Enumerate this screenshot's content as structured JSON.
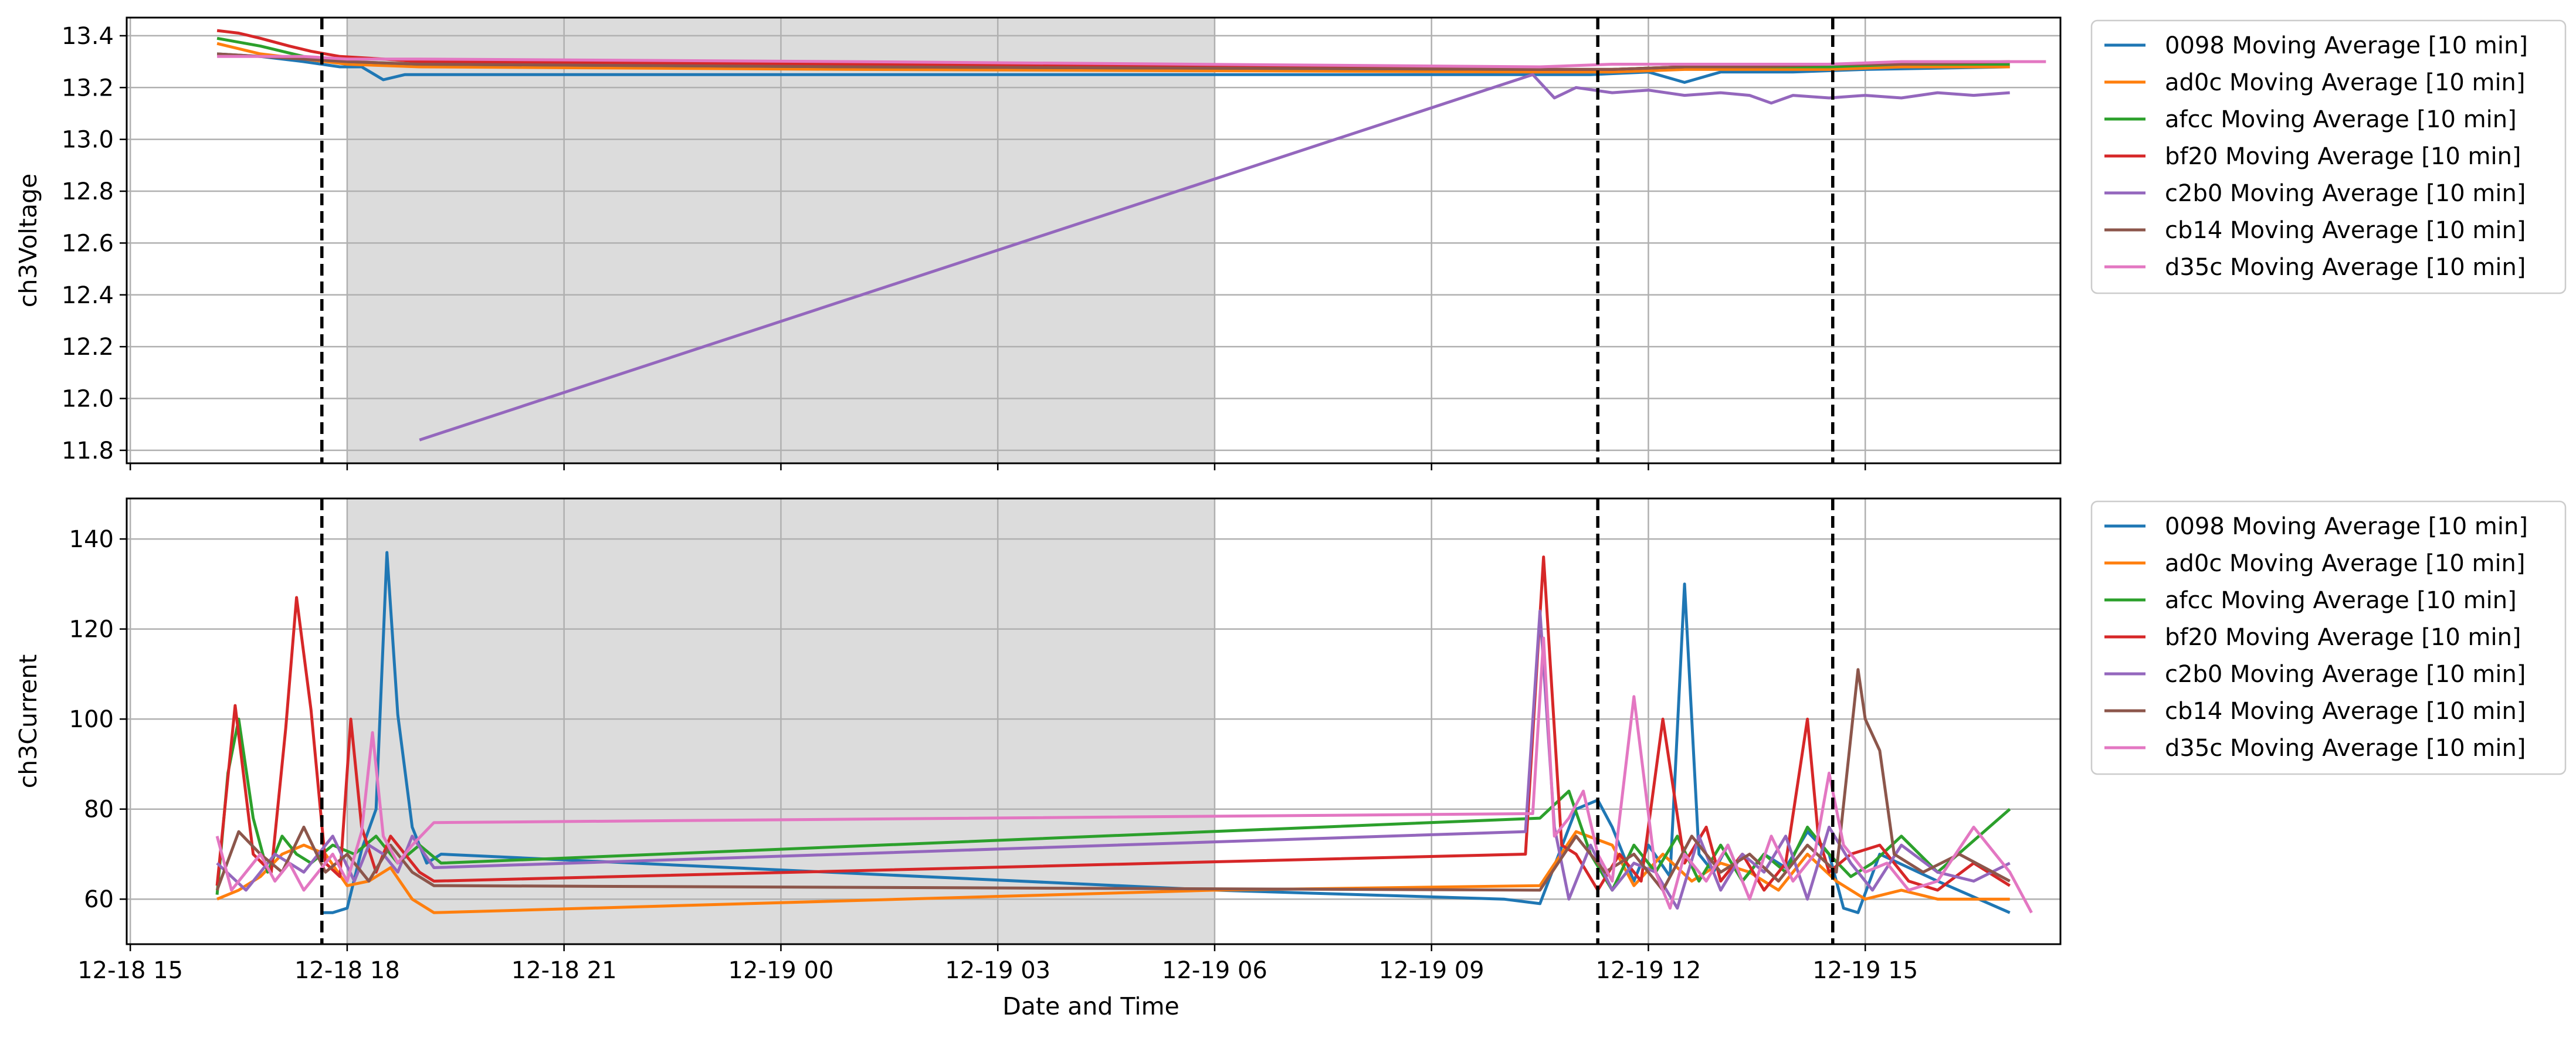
{
  "figure": {
    "x_axis_label": "Date and Time",
    "x_tick_labels": [
      "12-18 15",
      "12-18 18",
      "12-18 21",
      "12-19 00",
      "12-19 03",
      "12-19 06",
      "12-19 09",
      "12-19 12",
      "12-19 15"
    ]
  },
  "colors": {
    "0098": "#1f77b4",
    "ad0c": "#ff7f0e",
    "afcc": "#2ca02c",
    "bf20": "#d62728",
    "c2b0": "#9467bd",
    "cb14": "#8c564b",
    "d35c": "#e377c2",
    "shade": "#dcdcdc",
    "grid": "#b0b0b0",
    "vline": "#000000"
  },
  "chart_data": [
    {
      "type": "line",
      "x_unit": "hours since 12-18 00:00",
      "ylabel": "ch3Voltage",
      "xlim": [
        14.95,
        41.7
      ],
      "ylim": [
        11.75,
        13.47
      ],
      "yticks": [
        11.8,
        12.0,
        12.2,
        12.4,
        12.6,
        12.8,
        13.0,
        13.2,
        13.4
      ],
      "ytick_labels": [
        "11.8",
        "12.0",
        "12.2",
        "12.4",
        "12.6",
        "12.8",
        "13.0",
        "13.2",
        "13.4"
      ],
      "xticks": [
        15,
        18,
        21,
        24,
        27,
        30,
        33,
        36,
        39
      ],
      "shaded_region": [
        18.0,
        30.0
      ],
      "vlines": [
        17.65,
        35.3,
        38.55
      ],
      "legend_loc": "outside-right",
      "series": [
        {
          "name": "0098 Moving Average [10 min]",
          "color_key": "0098",
          "x": [
            16.2,
            16.8,
            17.4,
            17.9,
            18.2,
            18.5,
            18.8,
            19.2,
            25.0,
            34.5,
            35.2,
            36.0,
            36.5,
            37.0,
            38.0,
            39.0,
            41.0
          ],
          "y": [
            13.33,
            13.32,
            13.3,
            13.28,
            13.28,
            13.23,
            13.25,
            13.25,
            13.25,
            13.25,
            13.25,
            13.26,
            13.22,
            13.26,
            13.26,
            13.27,
            13.28
          ]
        },
        {
          "name": "ad0c Moving Average [10 min]",
          "color_key": "ad0c",
          "x": [
            16.2,
            16.8,
            17.4,
            18.0,
            19.0,
            25.0,
            34.5,
            35.5,
            36.5,
            37.5,
            38.5,
            39.5,
            41.0
          ],
          "y": [
            13.37,
            13.33,
            13.31,
            13.29,
            13.28,
            13.27,
            13.26,
            13.26,
            13.27,
            13.27,
            13.27,
            13.28,
            13.28
          ]
        },
        {
          "name": "afcc Moving Average [10 min]",
          "color_key": "afcc",
          "x": [
            16.2,
            16.8,
            17.4,
            18.0,
            19.0,
            25.0,
            34.5,
            35.5,
            36.5,
            37.5,
            38.5,
            39.5,
            41.0
          ],
          "y": [
            13.39,
            13.36,
            13.32,
            13.3,
            13.29,
            13.28,
            13.27,
            13.27,
            13.28,
            13.28,
            13.28,
            13.29,
            13.29
          ]
        },
        {
          "name": "bf20 Moving Average [10 min]",
          "color_key": "bf20",
          "x": [
            16.2,
            16.5,
            16.8,
            17.2,
            17.5,
            17.9,
            18.5,
            19.0,
            25.0,
            34.5,
            35.5,
            36.5,
            37.5,
            38.5,
            39.5,
            41.0
          ],
          "y": [
            13.42,
            13.41,
            13.39,
            13.36,
            13.34,
            13.32,
            13.31,
            13.3,
            13.29,
            13.27,
            13.27,
            13.28,
            13.28,
            13.29,
            13.29,
            13.3
          ]
        },
        {
          "name": "c2b0 Moving Average [10 min]",
          "color_key": "c2b0",
          "x": [
            19.0,
            34.4,
            34.7,
            35.0,
            35.5,
            36.0,
            36.5,
            37.0,
            37.4,
            37.7,
            38.0,
            38.5,
            39.0,
            39.5,
            40.0,
            40.5,
            41.0
          ],
          "y": [
            11.84,
            13.25,
            13.16,
            13.2,
            13.18,
            13.19,
            13.17,
            13.18,
            13.17,
            13.14,
            13.17,
            13.16,
            13.17,
            13.16,
            13.18,
            13.17,
            13.18
          ]
        },
        {
          "name": "cb14 Moving Average [10 min]",
          "color_key": "cb14",
          "x": [
            16.2,
            16.8,
            17.4,
            18.0,
            19.0,
            25.0,
            34.5,
            35.5,
            36.5,
            37.5,
            38.5,
            39.5,
            41.0
          ],
          "y": [
            13.33,
            13.32,
            13.31,
            13.3,
            13.29,
            13.28,
            13.27,
            13.27,
            13.28,
            13.28,
            13.29,
            13.29,
            13.3
          ]
        },
        {
          "name": "d35c Moving Average [10 min]",
          "color_key": "d35c",
          "x": [
            16.2,
            16.8,
            17.4,
            18.0,
            19.0,
            25.0,
            34.5,
            35.5,
            36.5,
            37.5,
            38.5,
            39.5,
            41.5
          ],
          "y": [
            13.32,
            13.32,
            13.32,
            13.31,
            13.31,
            13.3,
            13.28,
            13.29,
            13.29,
            13.29,
            13.29,
            13.3,
            13.3
          ]
        }
      ]
    },
    {
      "type": "line",
      "x_unit": "hours since 12-18 00:00",
      "ylabel": "ch3Current",
      "xlim": [
        14.95,
        41.7
      ],
      "ylim": [
        50,
        149
      ],
      "yticks": [
        60,
        80,
        100,
        120,
        140
      ],
      "ytick_labels": [
        "60",
        "80",
        "100",
        "120",
        "140"
      ],
      "xticks": [
        15,
        18,
        21,
        24,
        27,
        30,
        33,
        36,
        39
      ],
      "shaded_region": [
        18.0,
        30.0
      ],
      "vlines": [
        17.65,
        35.3,
        38.55
      ],
      "legend_loc": "outside-right",
      "series": [
        {
          "name": "0098 Moving Average [10 min]",
          "color_key": "0098",
          "x": [
            17.65,
            17.8,
            18.0,
            18.2,
            18.4,
            18.55,
            18.7,
            18.9,
            19.1,
            19.3,
            30.0,
            34.0,
            34.5,
            35.0,
            35.3,
            35.5,
            35.8,
            36.0,
            36.3,
            36.5,
            36.7,
            36.9,
            37.1,
            37.3,
            37.6,
            37.9,
            38.2,
            38.5,
            38.7,
            38.9,
            39.2,
            40.0,
            41.0
          ],
          "y": [
            57,
            57,
            58,
            71,
            80,
            137,
            101,
            76,
            68,
            70,
            62,
            60,
            59,
            80,
            82,
            76,
            64,
            72,
            65,
            130,
            70,
            66,
            72,
            64,
            70,
            67,
            75,
            70,
            58,
            57,
            70,
            64,
            57
          ]
        },
        {
          "name": "ad0c Moving Average [10 min]",
          "color_key": "ad0c",
          "x": [
            16.2,
            16.5,
            16.8,
            17.1,
            17.4,
            17.7,
            18.0,
            18.3,
            18.6,
            18.9,
            19.2,
            30.0,
            34.5,
            35.0,
            35.5,
            35.8,
            36.2,
            36.6,
            37.0,
            37.4,
            37.8,
            38.2,
            38.6,
            39.0,
            39.5,
            40.0,
            41.0
          ],
          "y": [
            60,
            62,
            65,
            70,
            72,
            70,
            63,
            64,
            67,
            60,
            57,
            62,
            63,
            75,
            72,
            63,
            70,
            64,
            68,
            66,
            62,
            70,
            64,
            60,
            62,
            60,
            60
          ]
        },
        {
          "name": "afcc Moving Average [10 min]",
          "color_key": "afcc",
          "x": [
            16.2,
            16.35,
            16.5,
            16.7,
            16.9,
            17.1,
            17.3,
            17.5,
            17.8,
            18.1,
            18.4,
            18.7,
            19.0,
            19.3,
            34.5,
            34.9,
            35.2,
            35.5,
            35.8,
            36.1,
            36.4,
            36.7,
            37.0,
            37.3,
            37.6,
            37.9,
            38.2,
            38.5,
            38.8,
            39.1,
            39.5,
            40.0,
            41.0
          ],
          "y": [
            61,
            88,
            100,
            78,
            66,
            74,
            70,
            68,
            72,
            70,
            74,
            68,
            72,
            68,
            78,
            84,
            70,
            62,
            72,
            66,
            74,
            64,
            72,
            64,
            70,
            66,
            76,
            70,
            65,
            68,
            74,
            66,
            80
          ]
        },
        {
          "name": "bf20 Moving Average [10 min]",
          "color_key": "bf20",
          "x": [
            16.2,
            16.45,
            16.7,
            16.95,
            17.15,
            17.3,
            17.5,
            17.7,
            17.9,
            18.05,
            18.2,
            18.4,
            18.6,
            18.8,
            19.0,
            19.2,
            34.3,
            34.55,
            34.8,
            35.0,
            35.3,
            35.6,
            35.9,
            36.2,
            36.5,
            36.8,
            37.0,
            37.3,
            37.6,
            37.9,
            38.2,
            38.35,
            38.5,
            38.8,
            39.2,
            39.6,
            40.0,
            40.5,
            41.0
          ],
          "y": [
            63,
            103,
            70,
            66,
            98,
            127,
            102,
            68,
            65,
            100,
            76,
            66,
            74,
            70,
            66,
            64,
            70,
            136,
            72,
            70,
            62,
            70,
            64,
            100,
            68,
            76,
            64,
            70,
            62,
            68,
            100,
            74,
            66,
            70,
            72,
            64,
            62,
            68,
            63
          ]
        },
        {
          "name": "c2b0 Moving Average [10 min]",
          "color_key": "c2b0",
          "x": [
            16.2,
            16.6,
            17.0,
            17.4,
            17.8,
            18.1,
            18.3,
            18.5,
            18.7,
            18.9,
            19.2,
            34.3,
            34.5,
            34.7,
            34.9,
            35.2,
            35.5,
            35.8,
            36.1,
            36.4,
            36.7,
            37.0,
            37.3,
            37.6,
            37.9,
            38.2,
            38.5,
            38.8,
            39.1,
            39.5,
            40.0,
            40.5,
            41.0
          ],
          "y": [
            68,
            62,
            70,
            66,
            74,
            64,
            72,
            70,
            66,
            74,
            67,
            75,
            124,
            76,
            60,
            72,
            62,
            68,
            66,
            58,
            74,
            62,
            70,
            66,
            74,
            60,
            76,
            68,
            62,
            72,
            66,
            64,
            68
          ]
        },
        {
          "name": "cb14 Moving Average [10 min]",
          "color_key": "cb14",
          "x": [
            16.2,
            16.5,
            16.8,
            17.1,
            17.4,
            17.7,
            18.0,
            18.3,
            18.6,
            18.9,
            19.2,
            34.5,
            35.0,
            35.4,
            35.8,
            36.2,
            36.6,
            37.0,
            37.4,
            37.8,
            38.2,
            38.6,
            38.9,
            39.0,
            39.2,
            39.4,
            39.8,
            40.3,
            41.0
          ],
          "y": [
            62,
            75,
            70,
            66,
            76,
            66,
            70,
            64,
            72,
            66,
            63,
            62,
            74,
            66,
            70,
            62,
            74,
            66,
            70,
            64,
            72,
            66,
            111,
            100,
            93,
            70,
            66,
            70,
            64
          ]
        },
        {
          "name": "d35c Moving Average [10 min]",
          "color_key": "d35c",
          "x": [
            16.2,
            16.4,
            16.6,
            16.8,
            17.0,
            17.2,
            17.4,
            17.6,
            17.8,
            18.0,
            18.2,
            18.35,
            18.5,
            18.7,
            18.9,
            19.2,
            34.4,
            34.55,
            34.7,
            34.9,
            35.1,
            35.3,
            35.5,
            35.8,
            36.1,
            36.3,
            36.5,
            36.8,
            37.1,
            37.4,
            37.7,
            38.0,
            38.3,
            38.5,
            38.7,
            39.0,
            39.3,
            39.6,
            40.0,
            40.5,
            41.0,
            41.3
          ],
          "y": [
            74,
            62,
            66,
            70,
            64,
            68,
            62,
            66,
            70,
            64,
            75,
            97,
            74,
            68,
            72,
            77,
            79,
            118,
            74,
            78,
            84,
            70,
            64,
            105,
            66,
            58,
            70,
            64,
            72,
            60,
            74,
            64,
            70,
            88,
            72,
            66,
            68,
            62,
            64,
            76,
            66,
            57
          ]
        }
      ]
    }
  ]
}
